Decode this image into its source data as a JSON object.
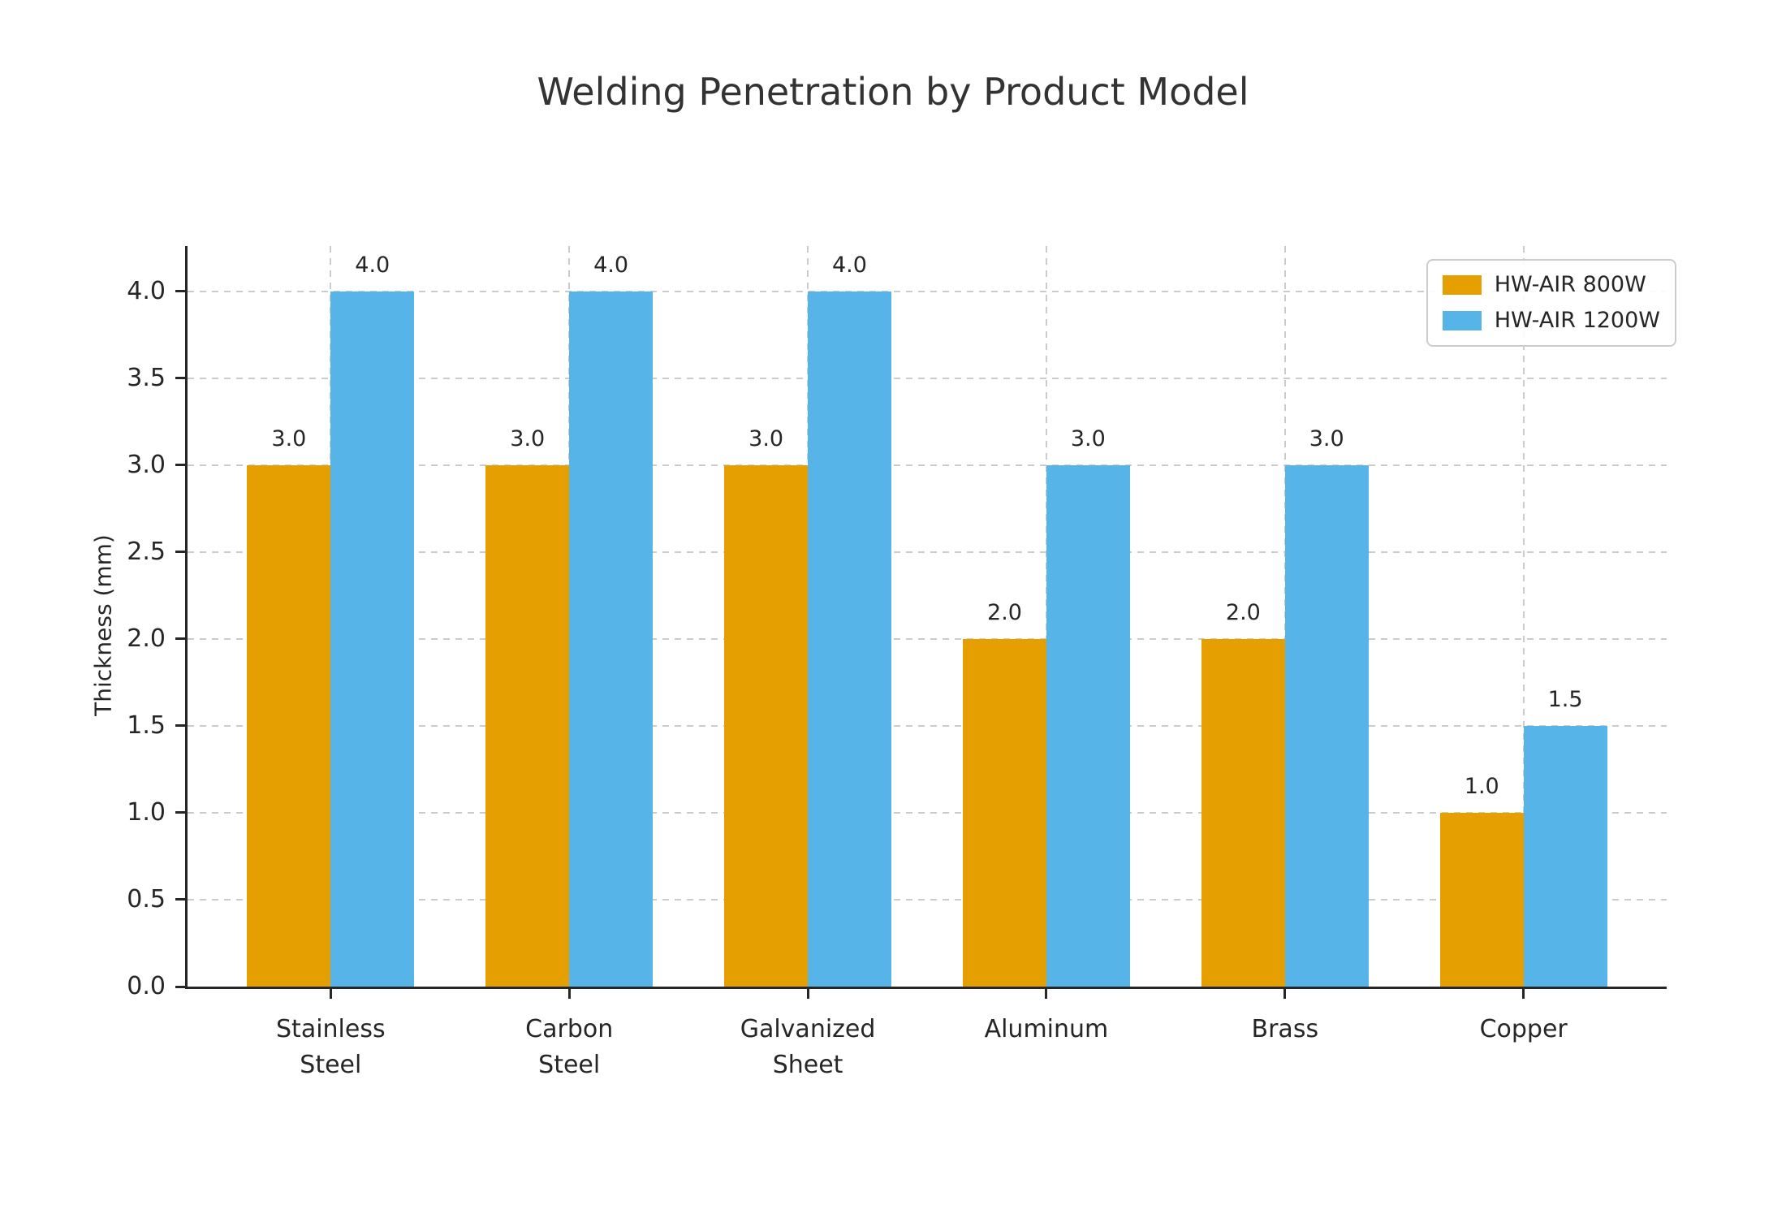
{
  "chart_data": {
    "type": "bar",
    "title": "Welding Penetration by Product Model",
    "xlabel": "",
    "ylabel": "Thickness (mm)",
    "categories": [
      "Stainless\nSteel",
      "Carbon\nSteel",
      "Galvanized\nSheet",
      "Aluminum",
      "Brass",
      "Copper"
    ],
    "series": [
      {
        "name": "HW-AIR 800W",
        "color": "#E69F00",
        "values": [
          3.0,
          3.0,
          3.0,
          2.0,
          2.0,
          1.0
        ],
        "value_labels": [
          "3.0",
          "3.0",
          "3.0",
          "2.0",
          "2.0",
          "1.0"
        ]
      },
      {
        "name": "HW-AIR 1200W",
        "color": "#56B4E9",
        "values": [
          4.0,
          4.0,
          4.0,
          3.0,
          3.0,
          1.5
        ],
        "value_labels": [
          "4.0",
          "4.0",
          "4.0",
          "3.0",
          "3.0",
          "1.5"
        ]
      }
    ],
    "ylim": [
      0,
      4.26
    ],
    "yticks": [
      0.0,
      0.5,
      1.0,
      1.5,
      2.0,
      2.5,
      3.0,
      3.5,
      4.0
    ],
    "ytick_labels": [
      "0.0",
      "0.5",
      "1.0",
      "1.5",
      "2.0",
      "2.5",
      "3.0",
      "3.5",
      "4.0"
    ],
    "bar_width_units": 0.35,
    "x_edge_padding_units": 0.6,
    "grid": "dashed",
    "grid_axisbelow": true,
    "legend_position": "upper right",
    "colors": {
      "grid": "#cccccc",
      "spine": "#262626",
      "text": "#262626",
      "title": "#333333",
      "legend_border": "#cccccc",
      "background": "#ffffff"
    }
  }
}
